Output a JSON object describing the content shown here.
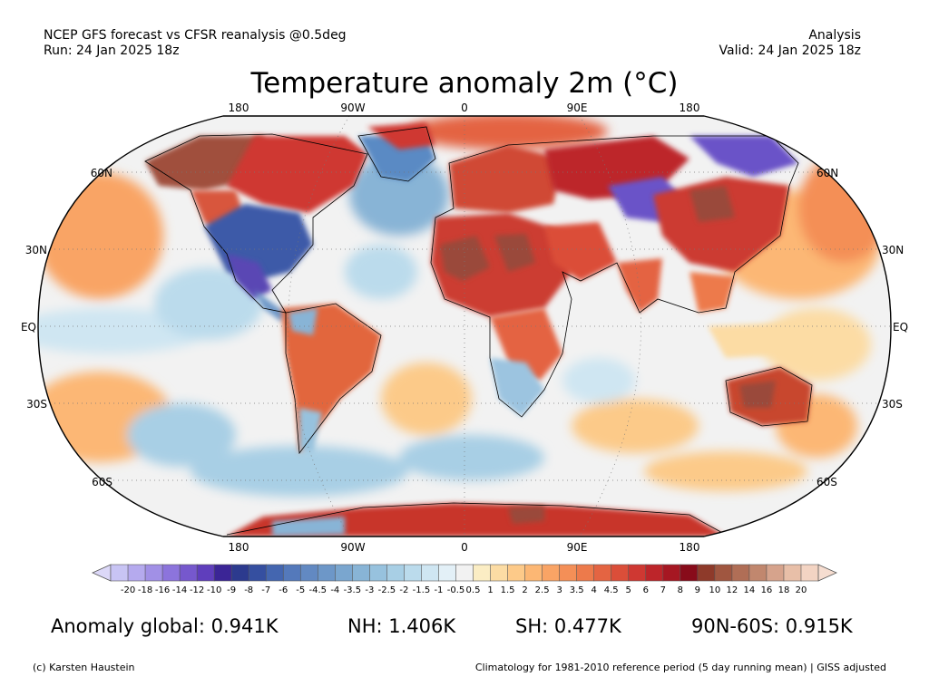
{
  "header": {
    "left_line1": "NCEP GFS forecast vs CFSR reanalysis @0.5deg",
    "left_line2": "Run: 24 Jan 2025 18z",
    "right_line1": "Analysis",
    "right_line2": "Valid: 24 Jan 2025 18z"
  },
  "title": "Temperature anomaly 2m (°C)",
  "map": {
    "projection": "Robinson",
    "lon_labels_top": [
      "180",
      "90W",
      "0",
      "90E",
      "180"
    ],
    "lon_labels_bottom": [
      "180",
      "90W",
      "0",
      "90E",
      "180"
    ],
    "lat_labels": [
      "60N",
      "30N",
      "EQ",
      "30S",
      "60S"
    ],
    "ocean_color": "#f2f2f2",
    "border_color": "#000000"
  },
  "colorbar": {
    "ticks": [
      "-20",
      "-18",
      "-16",
      "-14",
      "-12",
      "-10",
      "-9",
      "-8",
      "-7",
      "-6",
      "-5",
      "-4.5",
      "-4",
      "-3.5",
      "-3",
      "-2.5",
      "-2",
      "-1.5",
      "-1",
      "-0.5",
      "0.5",
      "1",
      "1.5",
      "2",
      "2.5",
      "3",
      "3.5",
      "4",
      "4.5",
      "5",
      "6",
      "7",
      "8",
      "9",
      "10",
      "12",
      "14",
      "16",
      "18",
      "20"
    ],
    "colors": [
      "#c8c4f4",
      "#b5aaee",
      "#a190e6",
      "#8c74dc",
      "#7658cd",
      "#5f3ebc",
      "#3b2596",
      "#2c3a8e",
      "#354fa0",
      "#4466b0",
      "#5479bb",
      "#6289c2",
      "#6d97c8",
      "#7aa6cf",
      "#88b4d6",
      "#97c2de",
      "#a8cfe5",
      "#bbdbec",
      "#cfe6f2",
      "#e3f0f7",
      "#f2f2f2",
      "#fbedc4",
      "#fcdca4",
      "#fdca89",
      "#fcb774",
      "#f9a465",
      "#f48f57",
      "#ed7a4b",
      "#e46442",
      "#db4e39",
      "#cf3832",
      "#bd252a",
      "#a61722",
      "#880b1a",
      "#8e3a2a",
      "#a05640",
      "#b06e56",
      "#c1876e",
      "#d6a38c",
      "#e8bfa8",
      "#f3d4c3"
    ]
  },
  "stats": {
    "global": "Anomaly global: 0.941K",
    "nh": "NH: 1.406K",
    "sh": "SH: 0.477K",
    "polar": "90N-60S: 0.915K"
  },
  "footer": {
    "left": "(c) Karsten Haustein",
    "right": "Climatology for 1981-2010 reference period (5 day running mean) | GISS adjusted"
  },
  "regions": [
    {
      "name": "north-america-west-warm-anomaly",
      "color": "#d8563e"
    },
    {
      "name": "alaska-warm-anomaly",
      "color": "#a0503c"
    },
    {
      "name": "usa-cold-anomaly",
      "color": "#3c5aa8"
    },
    {
      "name": "mexico-gulf-cold-anomaly",
      "color": "#5a46b4"
    },
    {
      "name": "greenland-cold-anomaly",
      "color": "#5a8ac4"
    },
    {
      "name": "north-atlantic-cold-anomaly",
      "color": "#7aa8d2"
    },
    {
      "name": "europe-warm-anomaly",
      "color": "#d04a36"
    },
    {
      "name": "north-africa-warm-anomaly",
      "color": "#cc3e32"
    },
    {
      "name": "sahara-hot-anomaly",
      "color": "#9a4a3a"
    },
    {
      "name": "siberia-cold-anomaly",
      "color": "#6a52c8"
    },
    {
      "name": "east-asia-warm-anomaly",
      "color": "#cc3a32"
    },
    {
      "name": "south-america-warm-anomaly",
      "color": "#e2663e"
    },
    {
      "name": "southern-africa-cool-anomaly",
      "color": "#9cc4e0"
    },
    {
      "name": "australia-warm-anomaly",
      "color": "#c8462e"
    },
    {
      "name": "antarctica-warm-anomaly",
      "color": "#c8342c"
    },
    {
      "name": "southern-ocean-cool-anomaly",
      "color": "#a8cfe5"
    },
    {
      "name": "pacific-warm-anomaly",
      "color": "#fcb774"
    },
    {
      "name": "equatorial-pacific-cool-anomaly",
      "color": "#cfe6f2"
    }
  ]
}
